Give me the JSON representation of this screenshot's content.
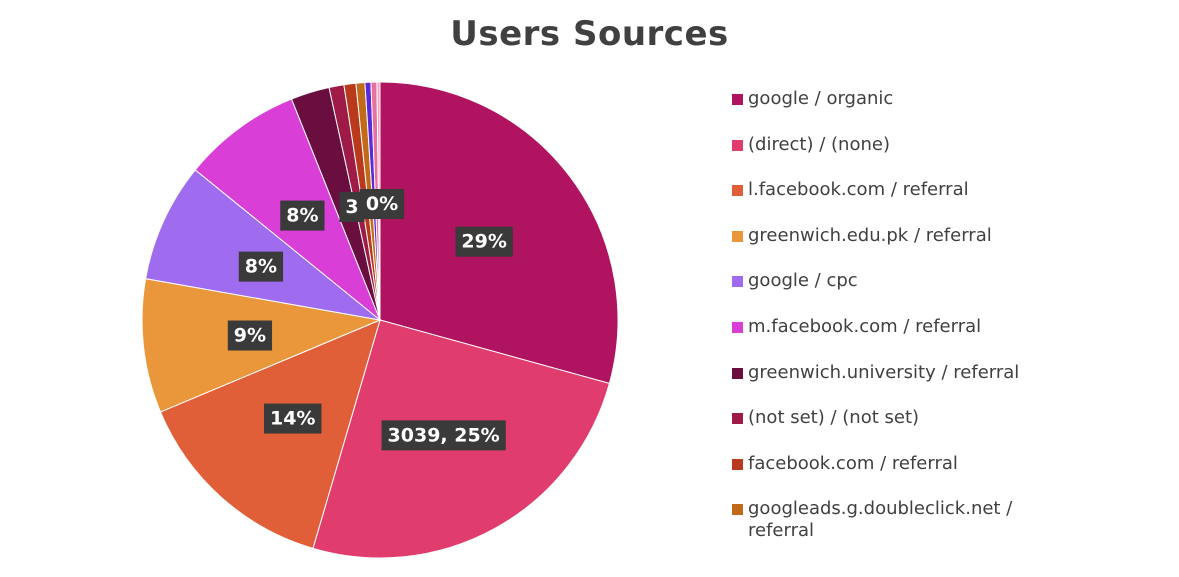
{
  "chart_data": {
    "type": "pie",
    "title": "Users Sources",
    "legend_position": "right",
    "start": "12 o'clock, clockwise",
    "slices": [
      {
        "name": "google / organic",
        "percent": 29,
        "label": "29%",
        "color": "#b0135f"
      },
      {
        "name": "(direct) / (none)",
        "percent": 25,
        "value": 3039,
        "label": "3039, 25%",
        "color": "#e03c6e"
      },
      {
        "name": "l.facebook.com / referral",
        "percent": 14,
        "label": "14%",
        "color": "#e15f38"
      },
      {
        "name": "greenwich.edu.pk / referral",
        "percent": 9,
        "label": "9%",
        "color": "#ea963a"
      },
      {
        "name": "google / cpc",
        "percent": 8,
        "label": "8%",
        "color": "#9f6bef"
      },
      {
        "name": "m.facebook.com / referral",
        "percent": 8,
        "label": "8%",
        "color": "#d93ed6"
      },
      {
        "name": "greenwich.university / referral",
        "percent": 2.6,
        "label": "3",
        "color": "#6a0d3f"
      },
      {
        "name": "(not set) / (not set)",
        "percent": 1.0,
        "label": "",
        "color": "#9e1a47"
      },
      {
        "name": "facebook.com / referral",
        "percent": 0.8,
        "label": "",
        "color": "#b8391c"
      },
      {
        "name": "googleads.g.doubleclick.net / referral",
        "percent": 0.6,
        "label": "",
        "color": "#c06a1a"
      },
      {
        "name": "",
        "percent": 0.4,
        "label": "",
        "color": "#5a2ad8"
      },
      {
        "name": "",
        "percent": 0.4,
        "label": "",
        "color": "#e870a0"
      },
      {
        "name": "",
        "percent": 0.2,
        "label": "0%",
        "color": "#f0a0c0"
      }
    ]
  }
}
